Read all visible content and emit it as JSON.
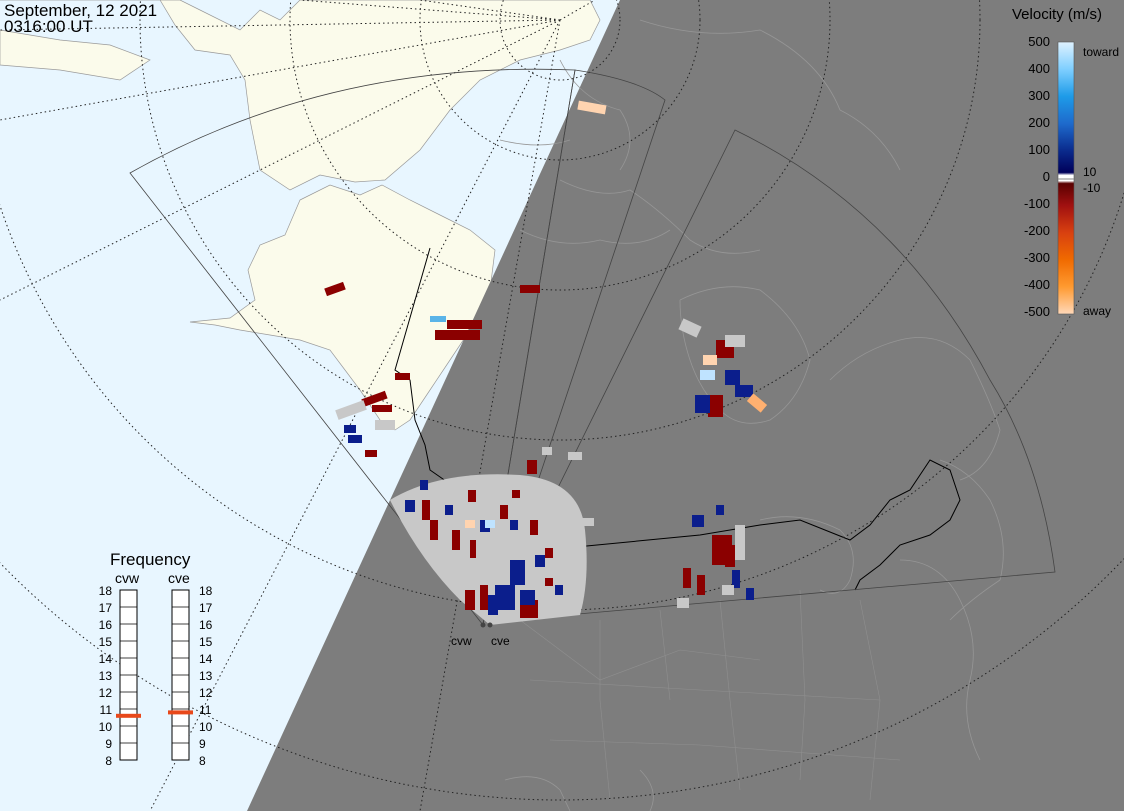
{
  "header": {
    "date": "September, 12 2021",
    "time": "0316:00 UT"
  },
  "velocity_scale": {
    "title": "Velocity (m/s)",
    "ticks": [
      "500",
      "400",
      "300",
      "200",
      "100",
      "0",
      "-100",
      "-200",
      "-300",
      "-400",
      "-500"
    ],
    "toward_label": "toward",
    "away_label": "away",
    "pos_threshold": "10",
    "neg_threshold": "-10"
  },
  "frequency_panel": {
    "title": "Frequency",
    "radars": [
      {
        "name": "cvw",
        "freq_mhz": 10.6
      },
      {
        "name": "cve",
        "freq_mhz": 10.8
      }
    ],
    "scale_mhz": [
      "18",
      "17",
      "16",
      "15",
      "14",
      "13",
      "12",
      "11",
      "10",
      "9",
      "8"
    ]
  },
  "stations": [
    "cvw",
    "cve"
  ],
  "colors": {
    "ocean_day": "#e8f6ff",
    "land_day": "#fbfbeb",
    "night": "#7d7d7d",
    "ground_scatter": "#c8c8c8",
    "toward_dark": "#0b1e8c",
    "away_dark": "#8b0000",
    "marker": "#e8481a"
  }
}
